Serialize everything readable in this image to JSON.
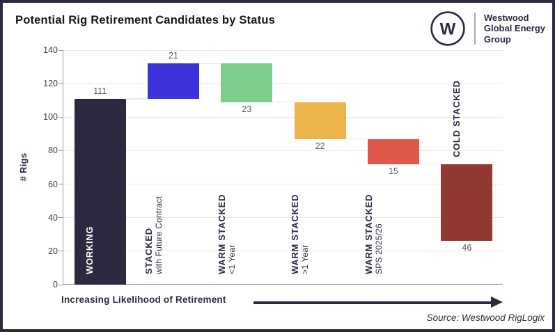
{
  "page": {
    "background": "#ffffff",
    "border_color": "#2b2a40"
  },
  "header": {
    "title": "Potential Rig Retirement Candidates by Status",
    "logo": {
      "monogram": "W",
      "name_line1": "Westwood",
      "name_line2": "Global Energy",
      "name_line3": "Group"
    }
  },
  "footer": {
    "arrow_annotation": "Increasing Likelihood of Retirement",
    "source": "Source: Westwood RigLogix"
  },
  "chart_data": {
    "type": "bar",
    "subtype": "waterfall",
    "title": "Potential Rig Retirement Candidates by Status",
    "ylabel": "# Rigs",
    "ylim": [
      0,
      140
    ],
    "ytick_step": 20,
    "grid": true,
    "colors": {
      "gridline": "#e8e8e8",
      "axis": "#9a99a2",
      "value_label": "#595959",
      "category_label": "#2b2a40",
      "category_label_inverse": "#ffffff",
      "brand_navy": "#2b2a40"
    },
    "bars": [
      {
        "label": "WORKING",
        "sublabel": "",
        "value": 111,
        "base": 0,
        "top": 111,
        "color": "#2b2a40",
        "label_placement": "inside-bar",
        "value_label_pos": "above"
      },
      {
        "label": "STACKED",
        "sublabel": "with Future Contract",
        "value": 21,
        "base": 111,
        "top": 132,
        "color": "#3d33dc",
        "label_placement": "below-bar",
        "value_label_pos": "above"
      },
      {
        "label": "WARM STACKED",
        "sublabel": "<1 Year",
        "value": 23,
        "base": 109,
        "top": 132,
        "color": "#7ccc8a",
        "label_placement": "below-bar",
        "value_label_pos": "below"
      },
      {
        "label": "WARM STACKED",
        "sublabel": ">1 Year",
        "value": 22,
        "base": 87,
        "top": 109,
        "color": "#ecb44c",
        "label_placement": "below-bar",
        "value_label_pos": "below"
      },
      {
        "label": "WARM STACKED",
        "sublabel": "SPS 2025/26",
        "value": 15,
        "base": 72,
        "top": 87,
        "color": "#e0584a",
        "label_placement": "below-bar",
        "value_label_pos": "below"
      },
      {
        "label": "COLD STACKED",
        "sublabel": "",
        "value": 46,
        "base": 26,
        "top": 72,
        "color": "#903a33",
        "label_placement": "above-bar",
        "value_label_pos": "below"
      }
    ]
  }
}
